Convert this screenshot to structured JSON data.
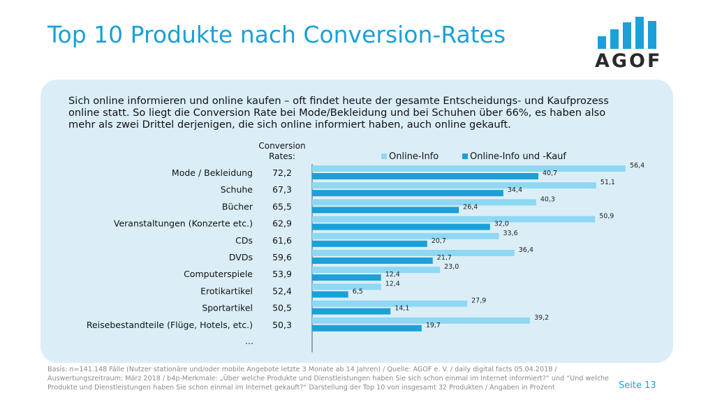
{
  "title": "Top 10 Produkte nach Conversion-Rates",
  "logo": {
    "text": "AGOF",
    "bar_color": "#1ba0d8",
    "text_color": "#2a2a2a"
  },
  "intro": "Sich online informieren und online kaufen – oft findet heute der gesamte Entscheidungs- und Kaufprozess online statt. So liegt die Conversion Rate bei Mode/Bekleidung und bei Schuhen über 66%, es haben also mehr als zwei Drittel derjenigen, die sich online informiert haben, auch online gekauft.",
  "chart_data": {
    "type": "bar",
    "orientation": "horizontal",
    "conversion_header": [
      "Conversion",
      "Rates:"
    ],
    "categories": [
      "Mode / Bekleidung",
      "Schuhe",
      "Bücher",
      "Veranstaltungen (Konzerte etc.)",
      "CDs",
      "DVDs",
      "Computerspiele",
      "Erotikartikel",
      "Sportartikel",
      "Reisebestandteile (Flüge, Hotels, etc.)"
    ],
    "conversion_rates": [
      "72,2",
      "67,3",
      "65,5",
      "62,9",
      "61,6",
      "59,6",
      "53,9",
      "52,4",
      "50,5",
      "50,3"
    ],
    "series": [
      {
        "name": "Online-Info",
        "color": "#8ed8f3",
        "values": [
          56.4,
          51.1,
          40.3,
          50.9,
          33.6,
          36.4,
          23.0,
          12.4,
          27.9,
          39.2
        ],
        "labels": [
          "56,4",
          "51,1",
          "40,3",
          "50,9",
          "33,6",
          "36,4",
          "23,0",
          "12,4",
          "27,9",
          "39,2"
        ]
      },
      {
        "name": "Online-Info und -Kauf",
        "color": "#1ba0d8",
        "values": [
          40.7,
          34.4,
          26.4,
          32.0,
          20.7,
          21.7,
          12.4,
          6.5,
          14.1,
          19.7
        ],
        "labels": [
          "40,7",
          "34,4",
          "26,4",
          "32,0",
          "20,7",
          "21,7",
          "12,4",
          "6,5",
          "14,1",
          "19,7"
        ]
      }
    ],
    "more_label": "…",
    "xlim": [
      0,
      56.4
    ],
    "legend_position": "top-right"
  },
  "footnote": "Basis: n=141.148 Fälle (Nutzer stationäre und/oder mobile Angebote letzte 3 Monate ab 14 Jahren) / Quelle: AGOF e. V. / daily digital facts 05.04.2018 / Auswertungszeitraum: März 2018 / b4p-Merkmale: „Über welche Produkte und Dienstleistungen haben Sie sich schon einmal im Internet informiert?“ und “Und welche Produkte und Dienstleistungen haben Sie schon einmal im Internet gekauft?“ Darstellung der Top 10 von insgesamt 32 Produkten / Angaben in Prozent",
  "page_number": "Seite 13"
}
